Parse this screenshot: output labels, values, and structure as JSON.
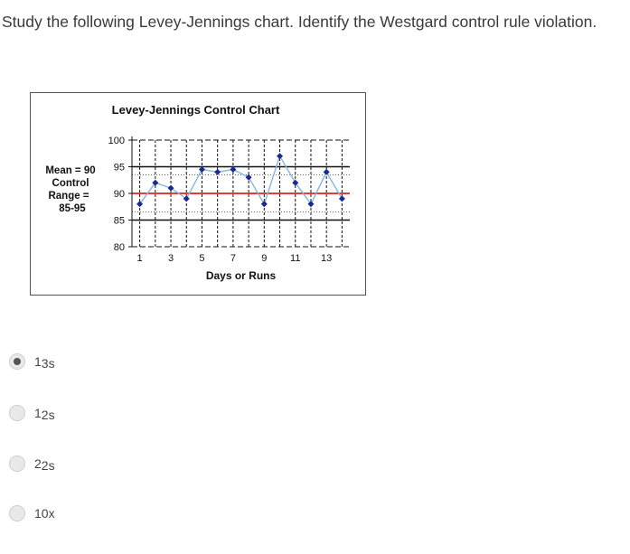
{
  "question": "Study the following Levey-Jennings chart. Identify the Westgard control rule violation.",
  "chart_data": {
    "type": "line",
    "title": "Levey-Jennings Control Chart",
    "xlabel": "Days or Runs",
    "ylabel": "",
    "x": [
      1,
      2,
      3,
      4,
      5,
      6,
      7,
      8,
      9,
      10,
      11,
      12,
      13,
      14
    ],
    "series": [
      {
        "values": [
          88,
          92,
          91,
          89,
          94.5,
          94,
          94.5,
          93,
          88,
          97,
          92,
          88,
          94,
          89
        ]
      }
    ],
    "x_ticks": [
      1,
      3,
      5,
      7,
      9,
      11,
      13
    ],
    "y_ticks": [
      80,
      85,
      90,
      95,
      100
    ],
    "ylim": [
      80,
      100
    ],
    "xlim": [
      1,
      14
    ],
    "mean_line": 90,
    "annotation": [
      "Mean = 90",
      "Control",
      "Range =",
      "85-95"
    ],
    "colors": {
      "series": "#8ab4d8",
      "points": "#1a2a8a",
      "mean": "#e02020",
      "grid": "#111111"
    }
  },
  "options": [
    {
      "base": "1",
      "sub": "3s",
      "checked": true
    },
    {
      "base": "1",
      "sub": "2s",
      "checked": false
    },
    {
      "base": "2",
      "sub": "2s",
      "checked": false
    },
    {
      "base": "10x",
      "sub": "",
      "checked": false
    }
  ]
}
